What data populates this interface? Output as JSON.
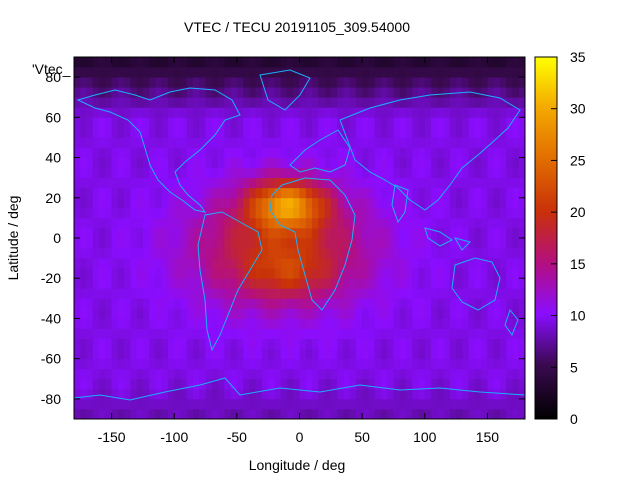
{
  "chart_data": {
    "type": "heatmap",
    "title": "VTEC / TECU 20191105_309.54000",
    "xlabel": "Longitude / deg",
    "ylabel": "Latitude / deg",
    "legend_entry": "'Vtec_",
    "xlim": [
      -180,
      180
    ],
    "ylim": [
      -90,
      90
    ],
    "x_ticks": [
      -150,
      -100,
      -50,
      0,
      50,
      100,
      150
    ],
    "y_ticks": [
      -80,
      -60,
      -40,
      -20,
      0,
      20,
      40,
      60,
      80
    ],
    "colorbar": {
      "range": [
        0,
        35
      ],
      "ticks": [
        0,
        5,
        10,
        15,
        20,
        25,
        30,
        35
      ]
    },
    "tec_field": {
      "background_tecu": 9.5,
      "polar_north_tecu": 3,
      "polar_south_tecu": 8,
      "peak_tecu": 34,
      "peak_lon": -10,
      "peak_lat": 17,
      "equatorial_anomaly_lon_range": [
        -90,
        50
      ],
      "equatorial_anomaly_lat_range": [
        -40,
        30
      ]
    }
  }
}
